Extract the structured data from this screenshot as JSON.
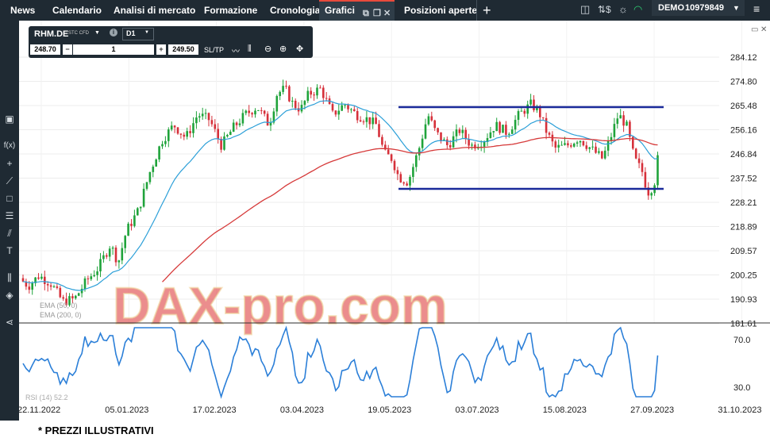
{
  "topbar": {
    "tabs": [
      "News",
      "Calendario",
      "Analisi di mercato",
      "Formazione",
      "Cronologia",
      "Grafici",
      "Posizioni aperte"
    ],
    "account_label": "DEMO",
    "account_number": "10979849"
  },
  "toolbar": {
    "symbol": "RHM.DE",
    "instrument_type": "STC CFD",
    "timeframe": "D1",
    "bid": "248.70",
    "quantity": "1",
    "ask": "249.50",
    "sltp_label": "SL/TP"
  },
  "chart": {
    "watermark": "DAX-pro.com",
    "indicator_labels": [
      "EMA (50, 0)",
      "EMA (200, 0)"
    ],
    "rsi_label": "RSI (14) 52.2",
    "price_ticks": [
      "284.12",
      "274.80",
      "265.48",
      "256.16",
      "246.84",
      "237.52",
      "228.21",
      "218.89",
      "209.57",
      "200.25",
      "190.93",
      "181.61"
    ],
    "rsi_ticks": [
      "70.0",
      "30.0"
    ],
    "date_ticks": [
      "22.11.2022",
      "05.01.2023",
      "17.02.2023",
      "03.04.2023",
      "19.05.2023",
      "03.07.2023",
      "15.08.2023",
      "27.09.2023",
      "31.10.2023"
    ]
  },
  "footer": {
    "disclaimer": "* PREZZI ILLUSTRATIVI"
  },
  "colors": {
    "bull": "#1fa33a",
    "bear": "#d6303a",
    "ema50": "#2b9fd8",
    "ema200": "#d63a3a",
    "range_lines": "#1a2a9a",
    "rsi": "#2b7fd8",
    "panel": "#1f2a33"
  },
  "icons": [
    "plus-icon",
    "window-icon",
    "dollar-icon",
    "wifi-icon",
    "chevron-down-icon",
    "hamburger-icon",
    "info-icon",
    "crosshair-icon",
    "zoom-in-icon",
    "zoom-out-icon",
    "line-chart-icon",
    "candle-icon"
  ]
}
